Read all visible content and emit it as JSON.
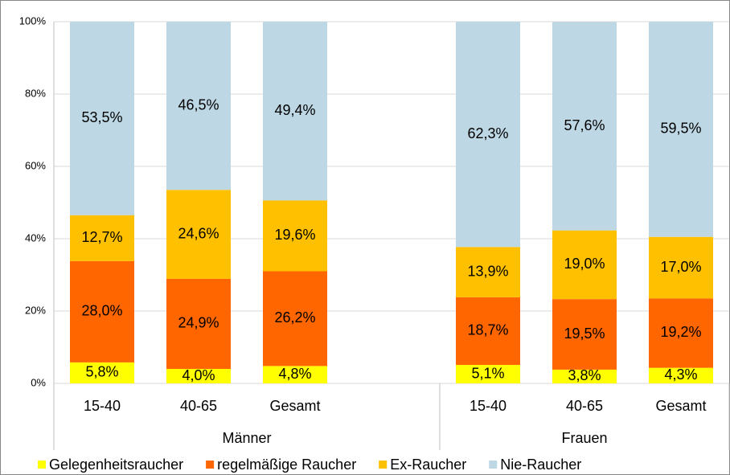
{
  "chart_data": {
    "type": "stacked_bar",
    "categories": [
      "15-40",
      "40-65",
      "Gesamt",
      null,
      "15-40",
      "40-65",
      "Gesamt"
    ],
    "groups": [
      "Männer",
      "Frauen"
    ],
    "series": [
      {
        "name": "Gelegenheitsraucher",
        "color": "#ffff00",
        "values": [
          5.8,
          4.0,
          4.8,
          null,
          5.1,
          3.8,
          4.3
        ],
        "value_labels": [
          "5,8%",
          "4,0%",
          "4,8%",
          null,
          "5,1%",
          "3,8%",
          "4,3%"
        ]
      },
      {
        "name": "regelmäßige Raucher",
        "color": "#ff6600",
        "values": [
          28.0,
          24.9,
          26.2,
          null,
          18.7,
          19.5,
          19.2
        ],
        "value_labels": [
          "28,0%",
          "24,9%",
          "26,2%",
          null,
          "18,7%",
          "19,5%",
          "19,2%"
        ]
      },
      {
        "name": "Ex-Raucher",
        "color": "#ffc000",
        "values": [
          12.7,
          24.6,
          19.6,
          null,
          13.9,
          19.0,
          17.0
        ],
        "value_labels": [
          "12,7%",
          "24,6%",
          "19,6%",
          null,
          "13,9%",
          "19,0%",
          "17,0%"
        ]
      },
      {
        "name": "Nie-Raucher",
        "color": "#bdd7e4",
        "values": [
          53.5,
          46.5,
          49.4,
          null,
          62.3,
          57.6,
          59.5
        ],
        "value_labels": [
          "53,5%",
          "46,5%",
          "49,4%",
          null,
          "62,3%",
          "57,6%",
          "59,5%"
        ]
      }
    ],
    "ylim": [
      0,
      100
    ],
    "yticks": [
      {
        "value": 0,
        "label": "0%"
      },
      {
        "value": 20,
        "label": "20%"
      },
      {
        "value": 40,
        "label": "40%"
      },
      {
        "value": 60,
        "label": "60%"
      },
      {
        "value": 80,
        "label": "80%"
      },
      {
        "value": 100,
        "label": "100%"
      }
    ],
    "grid": true,
    "legend": "bottom"
  }
}
